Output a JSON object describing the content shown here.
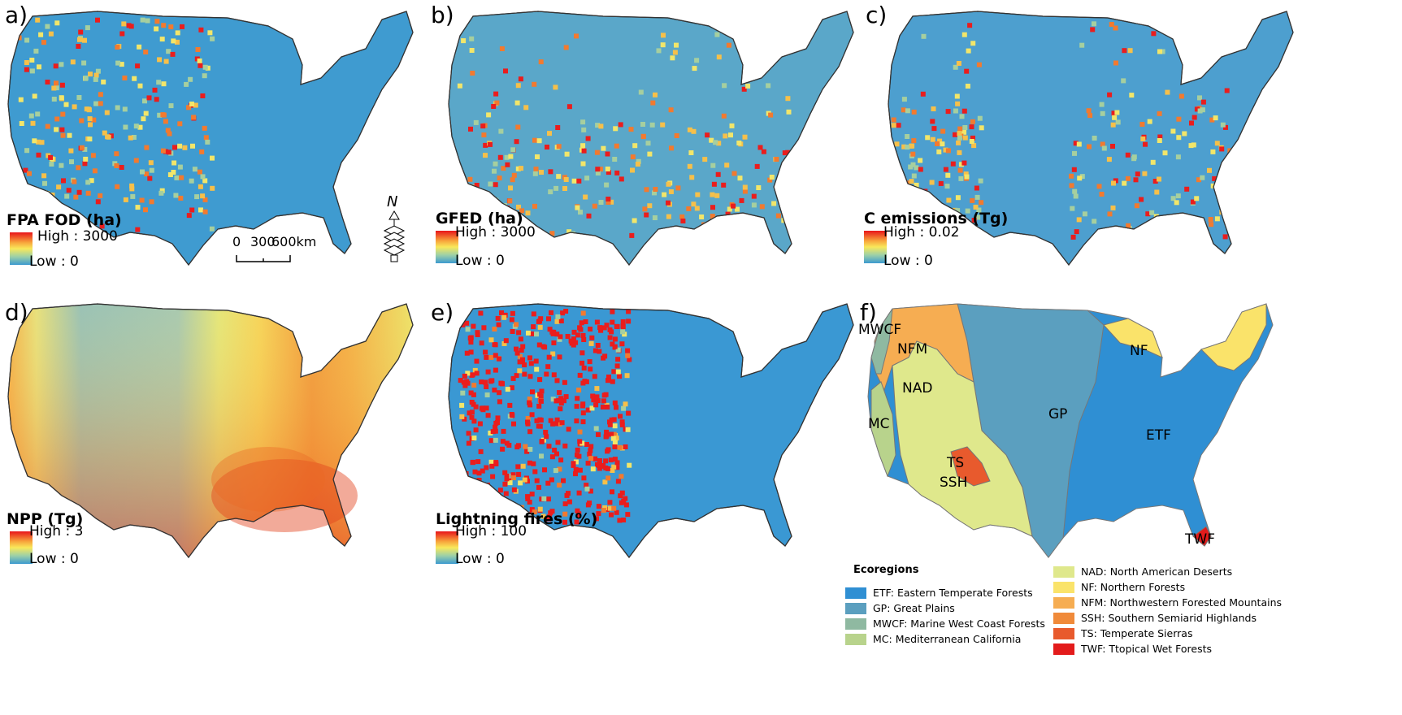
{
  "panels": [
    {
      "letter": "a)",
      "legend_title": "FPA FOD (ha)",
      "high": "High : 3000",
      "low": "Low : 0",
      "base": "#3f9bd0",
      "hot": "#ea1d1d"
    },
    {
      "letter": "b)",
      "legend_title": "GFED (ha)",
      "high": "High : 3000",
      "low": "Low : 0",
      "base": "#5aa7c9",
      "hot": "#ea1d1d"
    },
    {
      "letter": "c)",
      "legend_title": "C emissions (Tg)",
      "high": "High : 0.02",
      "low": "Low : 0",
      "base": "#4d9fcf",
      "hot": "#ea1d1d"
    },
    {
      "letter": "d)",
      "legend_title": "NPP (Tg)",
      "high": "High : 3",
      "low": "Low : 0",
      "base": "#8fbfc0",
      "hot": "#e8401d"
    },
    {
      "letter": "e)",
      "legend_title": "Lightning fires (%)",
      "high": "High : 100",
      "low": "Low : 0",
      "base": "#3a98d3",
      "hot": "#ea1d1d"
    },
    {
      "letter": "f)"
    }
  ],
  "scale_bar": {
    "labels": [
      "0",
      "300",
      "600km"
    ]
  },
  "north_arrow": {
    "label": "N"
  },
  "ecoregions": {
    "title": "Ecoregions",
    "map_labels": [
      "MWCF",
      "NFM",
      "NAD",
      "MC",
      "GP",
      "NF",
      "ETF",
      "TS",
      "SSH",
      "TWF"
    ],
    "items_left": [
      {
        "text": "ETF: Eastern Temperate Forests",
        "color": "#2f8fd3"
      },
      {
        "text": "GP: Great Plains",
        "color": "#5b9fbf"
      },
      {
        "text": "MWCF: Marine West Coast Forests",
        "color": "#8fb9a1"
      },
      {
        "text": "MC: Mediterranean California",
        "color": "#b8d38c"
      }
    ],
    "items_right": [
      {
        "text": "NAD: North American Deserts",
        "color": "#dfe88c"
      },
      {
        "text": "NF: Northern Forests",
        "color": "#fae36a"
      },
      {
        "text": "NFM: Northwestern Forested Mountains",
        "color": "#f6ad52"
      },
      {
        "text": "SSH: Southern Semiarid Highlands",
        "color": "#f08a3a"
      },
      {
        "text": "TS: Temperate Sierras",
        "color": "#e85a2d"
      },
      {
        "text": "TWF: Ttopical Wet Forests",
        "color": "#e31b1b"
      }
    ]
  }
}
